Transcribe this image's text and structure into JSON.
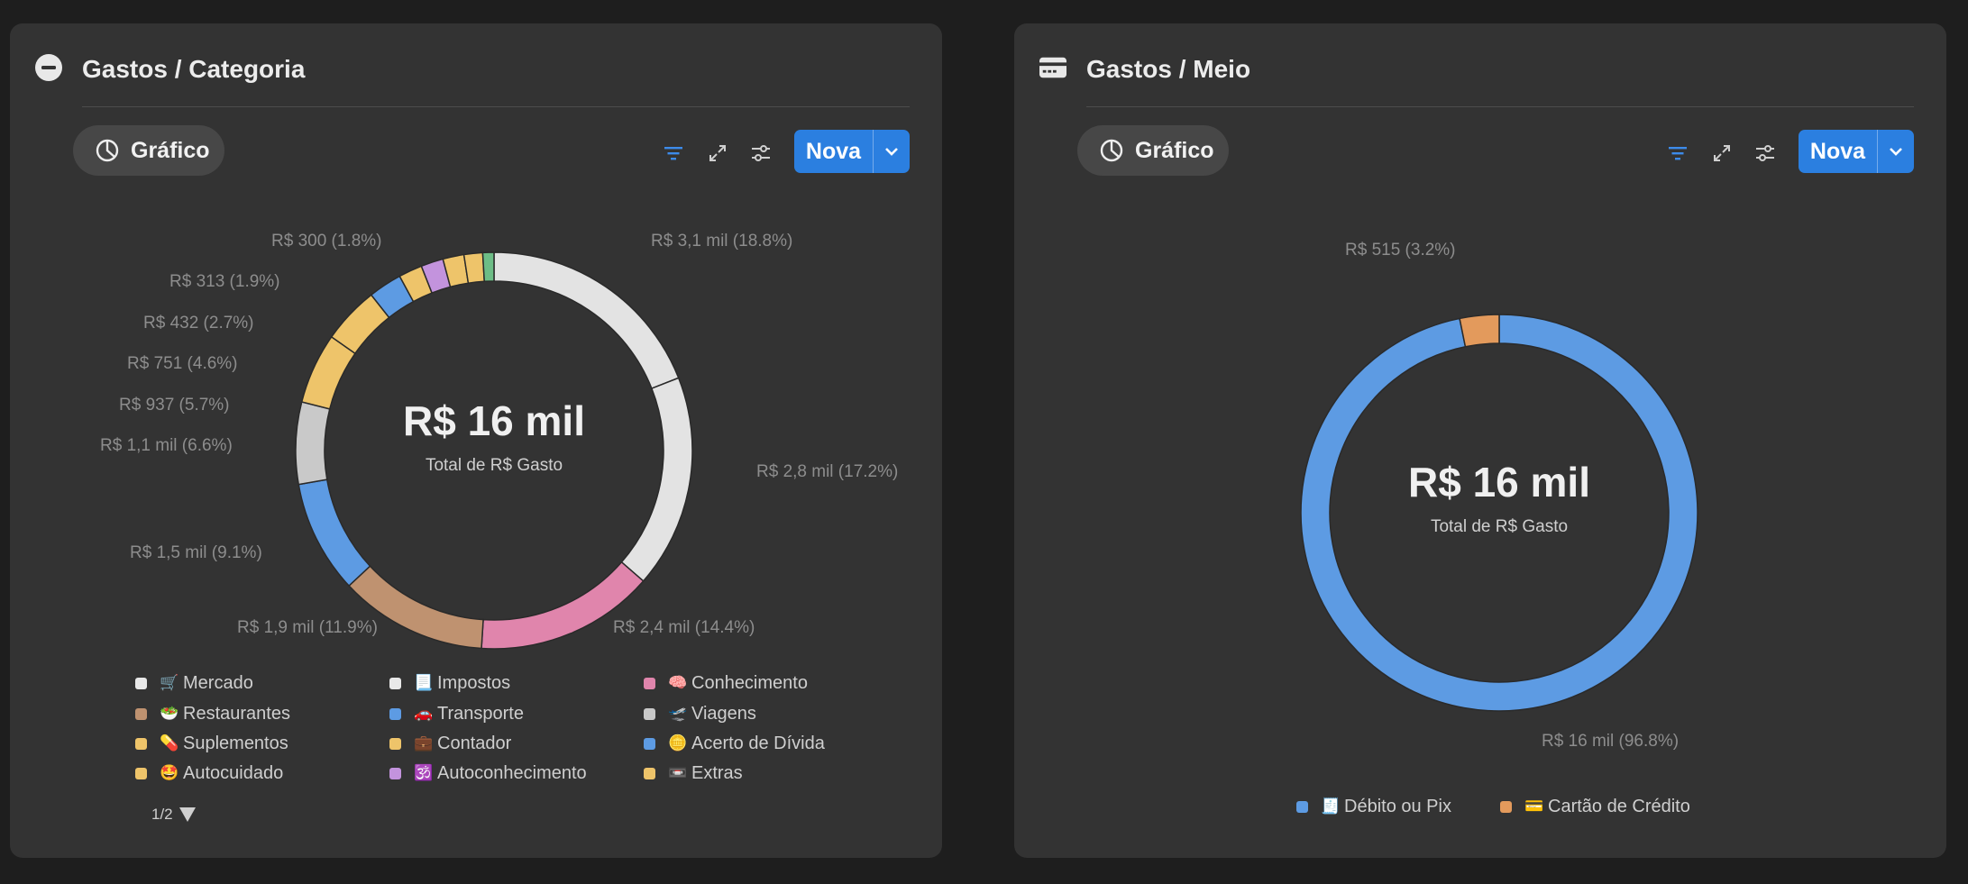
{
  "colors": {
    "accent": "#2b7fe0",
    "slice_white": "#e3e3e3",
    "slice_pink": "#e085ac",
    "slice_brown": "#bf9270",
    "slice_blue": "#5d9be3",
    "slice_gray": "#c9c9c9",
    "slice_yellow": "#eec46a",
    "slice_purple": "#c393dd",
    "slice_green": "#6dbd86",
    "slice_orange": "#e39a5c"
  },
  "left": {
    "title": "Gastos / Categoria",
    "title_icon": "minus-circle-icon",
    "view_button": {
      "label": "Gráfico",
      "icon": "pie-chart-icon"
    },
    "toolbar": {
      "filter_icon": "filter-icon",
      "expand_icon": "expand-icon",
      "settings_icon": "sliders-icon"
    },
    "new_button": {
      "label": "Nova",
      "dropdown_icon": "chevron-down-icon"
    },
    "center": {
      "value": "R$ 16 mil",
      "caption": "Total de R$ Gasto"
    },
    "slice_labels": [
      "R$ 3,1 mil (18.8%)",
      "R$ 2,8 mil (17.2%)",
      "R$ 2,4 mil (14.4%)",
      "R$ 1,9 mil (11.9%)",
      "R$ 1,5 mil (9.1%)",
      "R$ 1,1 mil (6.6%)",
      "R$ 937 (5.7%)",
      "R$ 751 (4.6%)",
      "R$ 432 (2.7%)",
      "R$ 313 (1.9%)",
      "R$ 300 (1.8%)"
    ],
    "legend": [
      {
        "emoji": "🛒",
        "label": "Mercado",
        "color": "#e8e8e8"
      },
      {
        "emoji": "🥗",
        "label": "Restaurantes",
        "color": "#bf9270"
      },
      {
        "emoji": "💊",
        "label": "Suplementos",
        "color": "#eec46a"
      },
      {
        "emoji": "🤩",
        "label": "Autocuidado",
        "color": "#eec46a"
      },
      {
        "emoji": "📃",
        "label": "Impostos",
        "color": "#e8e8e8"
      },
      {
        "emoji": "🚗",
        "label": "Transporte",
        "color": "#5d9be3"
      },
      {
        "emoji": "💼",
        "label": "Contador",
        "color": "#eec46a"
      },
      {
        "emoji": "🕉️",
        "label": "Autoconhecimento",
        "color": "#c393dd"
      },
      {
        "emoji": "🧠",
        "label": "Conhecimento",
        "color": "#e085ac"
      },
      {
        "emoji": "🛫",
        "label": "Viagens",
        "color": "#c9c9c9"
      },
      {
        "emoji": "🪙",
        "label": "Acerto de Dívida",
        "color": "#5d9be3"
      },
      {
        "emoji": "📼",
        "label": "Extras",
        "color": "#eec46a"
      }
    ],
    "pager": "1/2",
    "pager_icon": "triangle-down-icon"
  },
  "right": {
    "title": "Gastos / Meio",
    "title_icon": "credit-card-icon",
    "view_button": {
      "label": "Gráfico",
      "icon": "pie-chart-icon"
    },
    "toolbar": {
      "filter_icon": "filter-icon",
      "expand_icon": "expand-icon",
      "settings_icon": "sliders-icon"
    },
    "new_button": {
      "label": "Nova",
      "dropdown_icon": "chevron-down-icon"
    },
    "center": {
      "value": "R$ 16 mil",
      "caption": "Total de R$ Gasto"
    },
    "slice_labels": [
      "R$ 16 mil (96.8%)",
      "R$ 515 (3.2%)"
    ],
    "legend": [
      {
        "emoji": "🧾",
        "label": "Débito ou Pix",
        "color": "#5d9be3"
      },
      {
        "emoji": "💳",
        "label": "Cartão de Crédito",
        "color": "#e39a5c"
      }
    ]
  },
  "chart_data": [
    {
      "type": "pie",
      "title": "Gastos / Categoria",
      "total": "R$ 16 mil",
      "unit": "R$",
      "slices": [
        {
          "value": 3100,
          "percent": 18.8,
          "color": "#e3e3e3"
        },
        {
          "value": 2800,
          "percent": 17.2,
          "color": "#e3e3e3"
        },
        {
          "value": 2400,
          "percent": 14.4,
          "color": "#e085ac"
        },
        {
          "value": 1900,
          "percent": 11.9,
          "color": "#bf9270"
        },
        {
          "value": 1500,
          "percent": 9.1,
          "color": "#5d9be3"
        },
        {
          "value": 1100,
          "percent": 6.6,
          "color": "#c9c9c9"
        },
        {
          "value": 937,
          "percent": 5.7,
          "color": "#eec46a"
        },
        {
          "value": 751,
          "percent": 4.6,
          "color": "#eec46a"
        },
        {
          "value": 432,
          "percent": 2.7,
          "color": "#5d9be3"
        },
        {
          "value": 313,
          "percent": 1.9,
          "color": "#eec46a"
        },
        {
          "value": 300,
          "percent": 1.8,
          "color": "#c393dd"
        },
        {
          "percent": 1.7,
          "color": "#eec46a"
        },
        {
          "percent": 1.5,
          "color": "#eec46a"
        },
        {
          "percent": 0.9,
          "color": "#6dbd86"
        }
      ]
    },
    {
      "type": "pie",
      "title": "Gastos / Meio",
      "total": "R$ 16 mil",
      "unit": "R$",
      "slices": [
        {
          "name": "Débito ou Pix",
          "value": 16000,
          "percent": 96.8,
          "color": "#5d9be3"
        },
        {
          "name": "Cartão de Crédito",
          "value": 515,
          "percent": 3.2,
          "color": "#e39a5c"
        }
      ]
    }
  ]
}
